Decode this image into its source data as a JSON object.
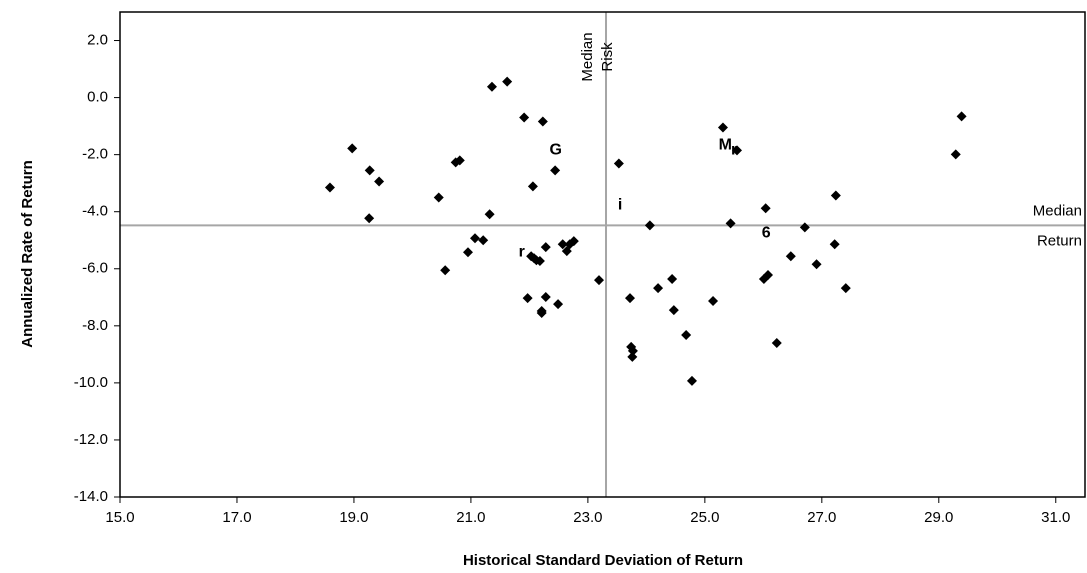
{
  "chart_data": {
    "type": "scatter",
    "x_label": "Historical Standard Deviation of Return",
    "y_label": "Annualized Rate of Return",
    "xlim": [
      15,
      31.5
    ],
    "ylim": [
      -14,
      3
    ],
    "xticks": [
      {
        "value": 15,
        "label": "15.0"
      },
      {
        "value": 17,
        "label": "17.0"
      },
      {
        "value": 19,
        "label": "19.0"
      },
      {
        "value": 21,
        "label": "21.0"
      },
      {
        "value": 23,
        "label": "23.0"
      },
      {
        "value": 25,
        "label": "25.0"
      },
      {
        "value": 27,
        "label": "27.0"
      },
      {
        "value": 29,
        "label": "29.0"
      },
      {
        "value": 31,
        "label": "31.0"
      }
    ],
    "yticks": [
      {
        "value": 2,
        "label": "2.0"
      },
      {
        "value": 0,
        "label": "0.0"
      },
      {
        "value": -2,
        "label": "-2.0"
      },
      {
        "value": -4,
        "label": "-4.0"
      },
      {
        "value": -6,
        "label": "-6.0"
      },
      {
        "value": -8,
        "label": "-8.0"
      },
      {
        "value": -10,
        "label": "-10.0"
      },
      {
        "value": -12,
        "label": "-12.0"
      },
      {
        "value": -14,
        "label": "-14.0"
      }
    ],
    "grid": false,
    "color": "#000000",
    "reference_lines": [
      {
        "axis": "x",
        "value": 23.31,
        "label": [
          "Median",
          "Risk"
        ],
        "color": "#a6a6a6"
      },
      {
        "axis": "y",
        "value": -4.48,
        "label": [
          "Median",
          "Return"
        ],
        "color": "#a6a6a6"
      }
    ],
    "annotations": [
      {
        "text": "G",
        "x": 22.45,
        "y": -1.85
      },
      {
        "text": "M",
        "x": 25.35,
        "y": -1.68
      },
      {
        "text": "r",
        "x": 25.5,
        "y": -1.85
      },
      {
        "text": "i",
        "x": 23.55,
        "y": -3.78
      },
      {
        "text": "r",
        "x": 21.87,
        "y": -5.42
      },
      {
        "text": "6",
        "x": 26.05,
        "y": -4.75
      }
    ],
    "x": [
      18.59,
      18.97,
      19.27,
      19.43,
      19.26,
      20.45,
      20.74,
      20.81,
      20.56,
      20.95,
      21.07,
      21.21,
      21.32,
      21.36,
      21.62,
      21.91,
      22.23,
      22.06,
      22.44,
      22.28,
      22.03,
      22.18,
      21.97,
      22.21,
      22.21,
      22.49,
      22.08,
      22.12,
      22.57,
      22.69,
      22.76,
      22.64,
      22.28,
      23.19,
      23.53,
      23.72,
      23.74,
      23.77,
      23.76,
      24.06,
      24.2,
      24.44,
      24.47,
      24.68,
      24.78,
      25.14,
      25.31,
      25.44,
      25.55,
      26.04,
      26.01,
      26.08,
      26.23,
      26.47,
      26.71,
      26.91,
      27.24,
      27.22,
      27.41,
      29.29,
      29.39
    ],
    "y": [
      -3.15,
      -1.78,
      -2.55,
      -2.94,
      -4.23,
      -3.5,
      -2.27,
      -2.2,
      -6.05,
      -5.42,
      -4.93,
      -5.0,
      -4.09,
      0.38,
      0.56,
      -0.7,
      -0.84,
      -3.11,
      -2.55,
      -5.24,
      -5.56,
      -5.73,
      -7.03,
      -7.48,
      -7.55,
      -7.24,
      -5.63,
      -5.7,
      -5.14,
      -5.14,
      -5.03,
      -5.38,
      -6.99,
      -6.4,
      -2.31,
      -7.03,
      -8.74,
      -8.88,
      -9.09,
      -4.48,
      -6.68,
      -6.36,
      -7.45,
      -8.32,
      -9.93,
      -7.13,
      -1.05,
      -4.41,
      -1.85,
      -3.88,
      -6.36,
      -6.22,
      -8.6,
      -5.56,
      -4.55,
      -5.84,
      -3.43,
      -5.14,
      -6.68,
      -1.99,
      -0.66
    ]
  }
}
